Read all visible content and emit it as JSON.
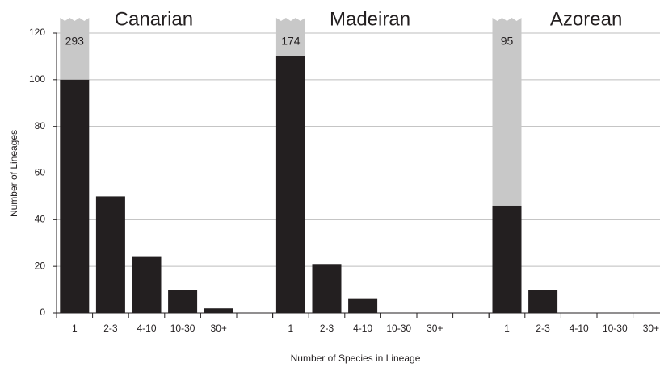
{
  "chart_data": {
    "type": "bar",
    "ylabel": "Number of Lineages",
    "xlabel": "Number of Species in Lineage",
    "ylim": [
      0,
      120
    ],
    "yticks": [
      0,
      20,
      40,
      60,
      80,
      100,
      120
    ],
    "grid": true,
    "color": "#231f20",
    "total_color": "#c8c8c8",
    "groups": [
      {
        "name": "Canarian",
        "categories": [
          "1",
          "2-3",
          "4-10",
          "10-30",
          "30+"
        ],
        "values": [
          100,
          50,
          24,
          10,
          2
        ],
        "total": 293
      },
      {
        "name": "Madeiran",
        "categories": [
          "1",
          "2-3",
          "4-10",
          "10-30",
          "30+"
        ],
        "values": [
          110,
          21,
          6,
          0,
          0
        ],
        "total": 174
      },
      {
        "name": "Azorean",
        "categories": [
          "1",
          "2-3",
          "4-10",
          "10-30",
          "30+"
        ],
        "values": [
          46,
          10,
          0,
          0,
          0
        ],
        "total": 95
      }
    ]
  }
}
